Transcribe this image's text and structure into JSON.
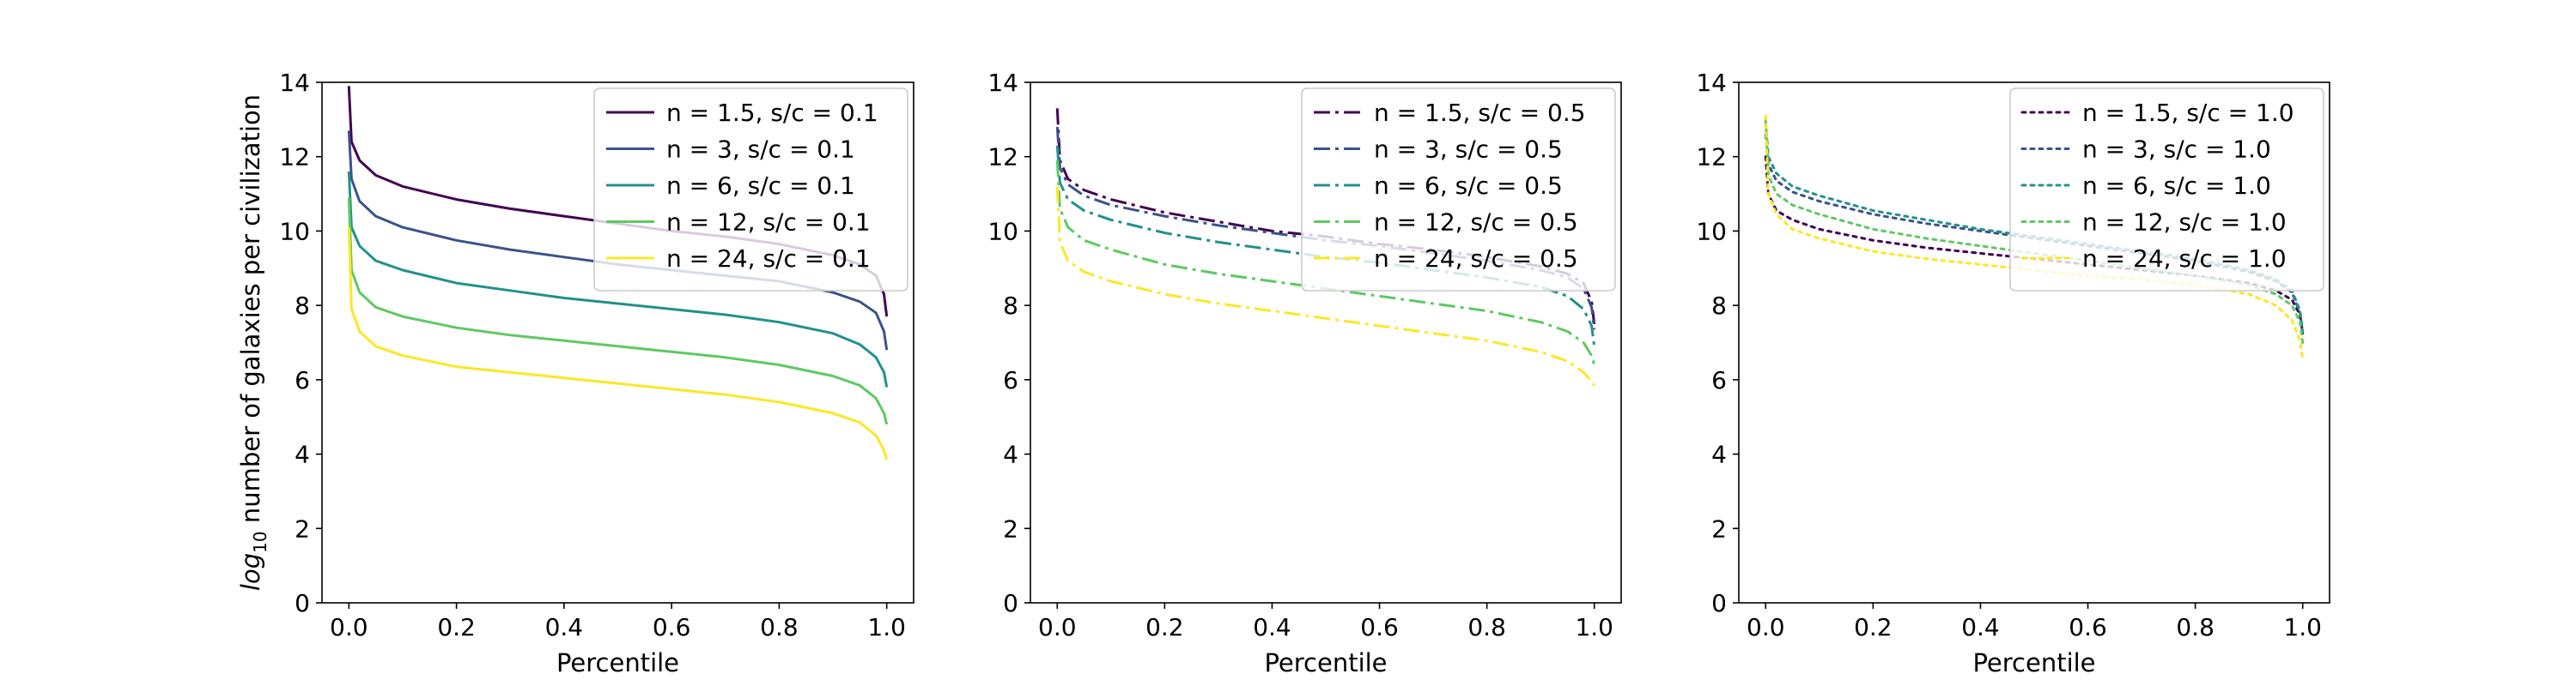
{
  "colors": {
    "n1_5": "#440154",
    "n3": "#3b528b",
    "n6": "#21918c",
    "n12": "#5ec962",
    "n24": "#fde725"
  },
  "chart_data": [
    {
      "type": "line",
      "linestyle": "solid",
      "xlabel": "Percentile",
      "ylabel": "log10 number of galaxies per civilization",
      "ylabel_parts": {
        "prefix": "log",
        "subscript": "10",
        "suffix": " number of galaxies per civilization"
      },
      "xlim": [
        -0.05,
        1.05
      ],
      "ylim": [
        0,
        14
      ],
      "xticks": [
        0.0,
        0.2,
        0.4,
        0.6,
        0.8,
        1.0
      ],
      "xtick_labels": [
        "0.0",
        "0.2",
        "0.4",
        "0.6",
        "0.8",
        "1.0"
      ],
      "yticks": [
        0,
        2,
        4,
        6,
        8,
        10,
        12,
        14
      ],
      "ytick_labels": [
        "0",
        "2",
        "4",
        "6",
        "8",
        "10",
        "12",
        "14"
      ],
      "legend_position": "top-right",
      "x": [
        0.0,
        0.005,
        0.02,
        0.05,
        0.1,
        0.2,
        0.3,
        0.4,
        0.5,
        0.6,
        0.7,
        0.8,
        0.9,
        0.95,
        0.98,
        0.995,
        1.0
      ],
      "series": [
        {
          "name": "n = 1.5, s/c = 0.1",
          "color": "#440154",
          "values": [
            13.9,
            12.4,
            11.9,
            11.5,
            11.2,
            10.85,
            10.6,
            10.4,
            10.2,
            10.0,
            9.85,
            9.65,
            9.35,
            9.1,
            8.8,
            8.3,
            7.7
          ]
        },
        {
          "name": "n = 3, s/c = 0.1",
          "color": "#3b528b",
          "values": [
            12.7,
            11.4,
            10.8,
            10.4,
            10.1,
            9.75,
            9.5,
            9.3,
            9.1,
            8.95,
            8.8,
            8.65,
            8.35,
            8.1,
            7.8,
            7.3,
            6.8
          ]
        },
        {
          "name": "n = 6, s/c = 0.1",
          "color": "#21918c",
          "values": [
            11.6,
            10.1,
            9.6,
            9.2,
            8.95,
            8.6,
            8.4,
            8.2,
            8.05,
            7.9,
            7.75,
            7.55,
            7.25,
            6.95,
            6.6,
            6.2,
            5.8
          ]
        },
        {
          "name": "n = 12, s/c = 0.1",
          "color": "#5ec962",
          "values": [
            10.9,
            8.95,
            8.35,
            7.95,
            7.7,
            7.4,
            7.2,
            7.05,
            6.9,
            6.75,
            6.6,
            6.4,
            6.1,
            5.85,
            5.5,
            5.1,
            4.8
          ]
        },
        {
          "name": "n = 24, s/c = 0.1",
          "color": "#fde725",
          "values": [
            10.1,
            7.9,
            7.3,
            6.9,
            6.65,
            6.35,
            6.2,
            6.05,
            5.9,
            5.75,
            5.6,
            5.4,
            5.1,
            4.85,
            4.5,
            4.1,
            3.85
          ]
        }
      ]
    },
    {
      "type": "line",
      "linestyle": "dashdot",
      "xlabel": "Percentile",
      "xlim": [
        -0.05,
        1.05
      ],
      "ylim": [
        0,
        14
      ],
      "xticks": [
        0.0,
        0.2,
        0.4,
        0.6,
        0.8,
        1.0
      ],
      "xtick_labels": [
        "0.0",
        "0.2",
        "0.4",
        "0.6",
        "0.8",
        "1.0"
      ],
      "yticks": [
        0,
        2,
        4,
        6,
        8,
        10,
        12,
        14
      ],
      "ytick_labels": [
        "0",
        "2",
        "4",
        "6",
        "8",
        "10",
        "12",
        "14"
      ],
      "legend_position": "top-right",
      "x": [
        0.0,
        0.005,
        0.02,
        0.05,
        0.1,
        0.2,
        0.3,
        0.4,
        0.5,
        0.6,
        0.7,
        0.8,
        0.9,
        0.95,
        0.98,
        0.995,
        1.0
      ],
      "series": [
        {
          "name": "n = 1.5, s/c = 0.5",
          "color": "#440154",
          "values": [
            13.3,
            11.9,
            11.4,
            11.1,
            10.85,
            10.5,
            10.25,
            10.0,
            9.85,
            9.65,
            9.5,
            9.3,
            9.05,
            8.85,
            8.6,
            8.1,
            7.5
          ]
        },
        {
          "name": "n = 3, s/c = 0.5",
          "color": "#3b528b",
          "values": [
            12.8,
            11.7,
            11.25,
            10.95,
            10.7,
            10.4,
            10.15,
            9.95,
            9.75,
            9.6,
            9.4,
            9.2,
            8.95,
            8.75,
            8.45,
            7.95,
            7.35
          ]
        },
        {
          "name": "n = 6, s/c = 0.5",
          "color": "#21918c",
          "values": [
            12.3,
            11.3,
            10.85,
            10.55,
            10.3,
            9.95,
            9.7,
            9.5,
            9.3,
            9.15,
            8.95,
            8.75,
            8.5,
            8.25,
            7.9,
            7.45,
            6.9
          ]
        },
        {
          "name": "n = 12, s/c = 0.5",
          "color": "#5ec962",
          "values": [
            11.9,
            10.6,
            10.1,
            9.75,
            9.5,
            9.1,
            8.85,
            8.65,
            8.45,
            8.25,
            8.05,
            7.85,
            7.55,
            7.3,
            7.0,
            6.65,
            6.4
          ]
        },
        {
          "name": "n = 24, s/c = 0.5",
          "color": "#fde725",
          "values": [
            11.2,
            9.7,
            9.2,
            8.9,
            8.65,
            8.3,
            8.05,
            7.85,
            7.65,
            7.45,
            7.25,
            7.05,
            6.75,
            6.5,
            6.2,
            5.95,
            5.85
          ]
        }
      ]
    },
    {
      "type": "line",
      "linestyle": "dotted",
      "xlabel": "Percentile",
      "xlim": [
        -0.05,
        1.05
      ],
      "ylim": [
        0,
        14
      ],
      "xticks": [
        0.0,
        0.2,
        0.4,
        0.6,
        0.8,
        1.0
      ],
      "xtick_labels": [
        "0.0",
        "0.2",
        "0.4",
        "0.6",
        "0.8",
        "1.0"
      ],
      "yticks": [
        0,
        2,
        4,
        6,
        8,
        10,
        12,
        14
      ],
      "ytick_labels": [
        "0",
        "2",
        "4",
        "6",
        "8",
        "10",
        "12",
        "14"
      ],
      "legend_position": "top-right",
      "x": [
        0.0,
        0.005,
        0.02,
        0.05,
        0.1,
        0.2,
        0.3,
        0.4,
        0.5,
        0.6,
        0.7,
        0.8,
        0.9,
        0.95,
        0.98,
        0.995,
        1.0
      ],
      "series": [
        {
          "name": "n = 1.5, s/c = 1.0",
          "color": "#440154",
          "values": [
            12.0,
            11.0,
            10.55,
            10.3,
            10.05,
            9.75,
            9.55,
            9.4,
            9.25,
            9.1,
            8.95,
            8.8,
            8.6,
            8.4,
            8.15,
            7.75,
            7.25
          ]
        },
        {
          "name": "n = 3, s/c = 1.0",
          "color": "#3b528b",
          "values": [
            12.6,
            11.8,
            11.35,
            11.05,
            10.8,
            10.45,
            10.2,
            10.0,
            9.8,
            9.6,
            9.4,
            9.2,
            8.9,
            8.65,
            8.35,
            7.8,
            7.2
          ]
        },
        {
          "name": "n = 6, s/c = 1.0",
          "color": "#21918c",
          "values": [
            12.9,
            12.0,
            11.55,
            11.2,
            10.95,
            10.55,
            10.3,
            10.05,
            9.85,
            9.65,
            9.45,
            9.25,
            8.95,
            8.7,
            8.4,
            7.85,
            7.3
          ]
        },
        {
          "name": "n = 12, s/c = 1.0",
          "color": "#5ec962",
          "values": [
            13.0,
            11.5,
            11.0,
            10.7,
            10.45,
            10.05,
            9.8,
            9.6,
            9.4,
            9.2,
            9.0,
            8.8,
            8.55,
            8.3,
            8.0,
            7.55,
            7.0
          ]
        },
        {
          "name": "n = 24, s/c = 1.0",
          "color": "#fde725",
          "values": [
            13.1,
            11.0,
            10.45,
            10.05,
            9.8,
            9.45,
            9.25,
            9.1,
            8.95,
            8.8,
            8.7,
            8.55,
            8.3,
            8.0,
            7.6,
            7.05,
            6.55
          ]
        }
      ]
    }
  ]
}
